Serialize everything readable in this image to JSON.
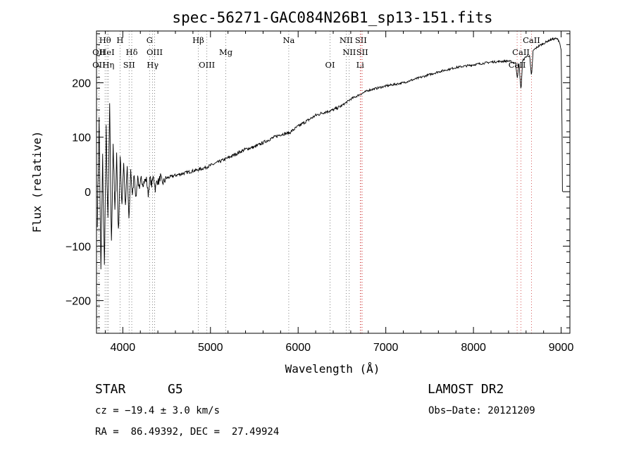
{
  "chart_data": {
    "type": "line",
    "title": "spec-56271-GAC084N26B1_sp13-151.fits",
    "xlabel": "Wavelength (Å)",
    "ylabel": "Flux (relative)",
    "xlim": [
      3700,
      9100
    ],
    "ylim": [
      -260,
      295
    ],
    "xticks": [
      4000,
      5000,
      6000,
      7000,
      8000,
      9000
    ],
    "yticks": [
      -200,
      -100,
      0,
      100,
      200
    ],
    "series": [
      {
        "name": "flux",
        "x": [
          3710,
          3730,
          3750,
          3770,
          3790,
          3810,
          3830,
          3850,
          3870,
          3890,
          3910,
          3930,
          3950,
          3970,
          3990,
          4010,
          4030,
          4050,
          4070,
          4090,
          4110,
          4130,
          4150,
          4170,
          4190,
          4210,
          4230,
          4250,
          4270,
          4290,
          4310,
          4330,
          4350,
          4370,
          4390,
          4410,
          4430,
          4450,
          4500,
          4600,
          4700,
          4800,
          4900,
          5000,
          5100,
          5200,
          5300,
          5400,
          5500,
          5600,
          5700,
          5800,
          5900,
          6000,
          6100,
          6200,
          6300,
          6400,
          6500,
          6600,
          6700,
          6800,
          6900,
          7000,
          7200,
          7400,
          7600,
          7800,
          8000,
          8200,
          8400,
          8480,
          8500,
          8520,
          8542,
          8560,
          8600,
          8640,
          8662,
          8680,
          8700,
          8750,
          8800,
          8850,
          8900,
          8950,
          8980,
          9000,
          9010,
          9015
        ],
        "values": [
          -50,
          130,
          -150,
          60,
          -140,
          110,
          -60,
          150,
          -100,
          90,
          -40,
          70,
          -80,
          60,
          -20,
          55,
          -30,
          45,
          -55,
          40,
          -10,
          35,
          -15,
          30,
          0,
          25,
          15,
          20,
          22,
          -5,
          25,
          12,
          30,
          5,
          20,
          18,
          28,
          15,
          25,
          30,
          34,
          38,
          42,
          48,
          55,
          62,
          70,
          78,
          82,
          90,
          98,
          105,
          108,
          120,
          130,
          140,
          146,
          150,
          158,
          170,
          178,
          186,
          190,
          194,
          200,
          210,
          220,
          228,
          233,
          238,
          240,
          236,
          210,
          235,
          185,
          240,
          248,
          250,
          210,
          258,
          262,
          268,
          272,
          277,
          280,
          281,
          276,
          260,
          120,
          0
        ]
      }
    ],
    "lines": [
      {
        "name": "Hθ",
        "x": 3798,
        "row": 0,
        "color": "#666666"
      },
      {
        "name": "OII",
        "x": 3727,
        "row": 1,
        "color": "#666666"
      },
      {
        "name": "OII",
        "x": 3727,
        "row": 2,
        "color": "#666666"
      },
      {
        "name": "HeI",
        "x": 3820,
        "row": 1,
        "color": "#666666"
      },
      {
        "name": "Hη",
        "x": 3835,
        "row": 2,
        "color": "#666666"
      },
      {
        "name": "H",
        "x": 3968,
        "row": 0,
        "color": "#666666"
      },
      {
        "name": "Hδ",
        "x": 4102,
        "row": 1,
        "color": "#666666"
      },
      {
        "name": "SII",
        "x": 4072,
        "row": 2,
        "color": "#666666"
      },
      {
        "name": "G",
        "x": 4305,
        "row": 0,
        "color": "#666666"
      },
      {
        "name": "OIII",
        "x": 4363,
        "row": 1,
        "color": "#666666"
      },
      {
        "name": "Hγ",
        "x": 4340,
        "row": 2,
        "color": "#666666"
      },
      {
        "name": "Hβ",
        "x": 4861,
        "row": 0,
        "color": "#666666"
      },
      {
        "name": "OIII",
        "x": 4959,
        "row": 2,
        "color": "#666666"
      },
      {
        "name": "Mg",
        "x": 5175,
        "row": 1,
        "color": "#666666"
      },
      {
        "name": "Na",
        "x": 5893,
        "row": 0,
        "color": "#666666"
      },
      {
        "name": "OI",
        "x": 6364,
        "row": 2,
        "color": "#666666"
      },
      {
        "name": "NII",
        "x": 6548,
        "row": 0,
        "color": "#666666"
      },
      {
        "name": "NII",
        "x": 6583,
        "row": 1,
        "color": "#666666"
      },
      {
        "name": "SII",
        "x": 6716,
        "row": 0,
        "color": "#cc3333"
      },
      {
        "name": "SII",
        "x": 6731,
        "row": 1,
        "color": "#cc3333"
      },
      {
        "name": "Li",
        "x": 6708,
        "row": 2,
        "color": "#cc3333"
      },
      {
        "name": "CaII",
        "x": 8662,
        "row": 0,
        "color": "#cc3333"
      },
      {
        "name": "CaII",
        "x": 8542,
        "row": 1,
        "color": "#cc3333"
      },
      {
        "name": "CaII",
        "x": 8498,
        "row": 2,
        "color": "#cc3333"
      }
    ]
  },
  "info": {
    "class_label": "STAR",
    "subclass": "G5",
    "survey": "LAMOST DR2",
    "cz": "cz = −19.4 ± 3.0 km/s",
    "obs_date": "Obs−Date: 20121209",
    "coords": "RA =  86.49392, DEC =  27.49924"
  }
}
